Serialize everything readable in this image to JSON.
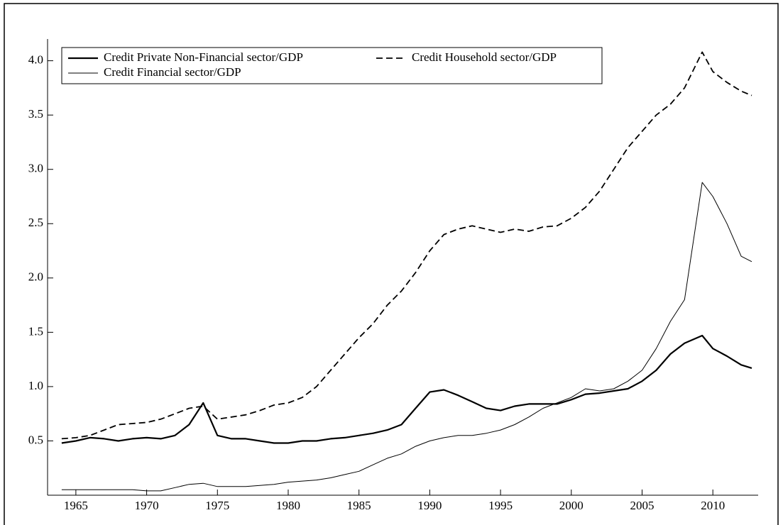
{
  "chart_data": {
    "type": "line",
    "x": [
      1964,
      1965,
      1966,
      1967,
      1968,
      1969,
      1970,
      1971,
      1972,
      1973,
      1974,
      1975,
      1976,
      1977,
      1978,
      1979,
      1980,
      1981,
      1982,
      1983,
      1984,
      1985,
      1986,
      1987,
      1988,
      1989,
      1990,
      1991,
      1992,
      1993,
      1994,
      1995,
      1996,
      1997,
      1998,
      1999,
      2000,
      2001,
      2002,
      2003,
      2004,
      2005,
      2006,
      2007,
      2008,
      2009.25,
      2010,
      2011,
      2012,
      2012.75
    ],
    "series": [
      {
        "name": "Credit Private Non-Financial sector/GDP",
        "color": "#000000",
        "style": "thick",
        "values": [
          0.48,
          0.5,
          0.53,
          0.52,
          0.5,
          0.52,
          0.53,
          0.52,
          0.55,
          0.65,
          0.85,
          0.55,
          0.52,
          0.52,
          0.5,
          0.48,
          0.48,
          0.5,
          0.5,
          0.52,
          0.53,
          0.55,
          0.57,
          0.6,
          0.65,
          0.8,
          0.95,
          0.97,
          0.92,
          0.86,
          0.8,
          0.78,
          0.82,
          0.84,
          0.84,
          0.84,
          0.88,
          0.93,
          0.94,
          0.96,
          0.98,
          1.05,
          1.15,
          1.3,
          1.4,
          1.47,
          1.35,
          1.28,
          1.2,
          1.17
        ]
      },
      {
        "name": "Credit Household sector/GDP",
        "color": "#000000",
        "style": "dashed",
        "values": [
          0.52,
          0.53,
          0.55,
          0.6,
          0.65,
          0.66,
          0.67,
          0.7,
          0.75,
          0.8,
          0.82,
          0.7,
          0.72,
          0.74,
          0.78,
          0.83,
          0.85,
          0.9,
          1.0,
          1.15,
          1.3,
          1.45,
          1.58,
          1.75,
          1.88,
          2.05,
          2.25,
          2.4,
          2.45,
          2.48,
          2.45,
          2.42,
          2.45,
          2.43,
          2.47,
          2.48,
          2.55,
          2.65,
          2.8,
          3.0,
          3.2,
          3.35,
          3.5,
          3.6,
          3.75,
          4.08,
          3.9,
          3.8,
          3.72,
          3.68
        ]
      },
      {
        "name": "Credit Financial sector/GDP",
        "color": "#000000",
        "style": "thin",
        "values": [
          0.05,
          0.05,
          0.05,
          0.05,
          0.05,
          0.05,
          0.04,
          0.04,
          0.07,
          0.1,
          0.11,
          0.08,
          0.08,
          0.08,
          0.09,
          0.1,
          0.12,
          0.13,
          0.14,
          0.16,
          0.19,
          0.22,
          0.28,
          0.34,
          0.38,
          0.45,
          0.5,
          0.53,
          0.55,
          0.55,
          0.57,
          0.6,
          0.65,
          0.72,
          0.8,
          0.85,
          0.9,
          0.98,
          0.96,
          0.98,
          1.05,
          1.15,
          1.35,
          1.6,
          1.8,
          2.88,
          2.75,
          2.5,
          2.2,
          2.15
        ]
      }
    ],
    "xlim": [
      1963,
      2013.2
    ],
    "xticks": [
      1965,
      1970,
      1975,
      1980,
      1985,
      1990,
      1995,
      2000,
      2005,
      2010
    ],
    "ylim": [
      0,
      4.2
    ],
    "yticks": [
      0.5,
      {
        "value": 1,
        "label": "1.0"
      },
      1.5,
      {
        "value": 2,
        "label": "2.0"
      },
      2.5,
      {
        "value": 3,
        "label": "3.0"
      },
      3.5,
      {
        "value": 4,
        "label": "4.0"
      }
    ]
  }
}
